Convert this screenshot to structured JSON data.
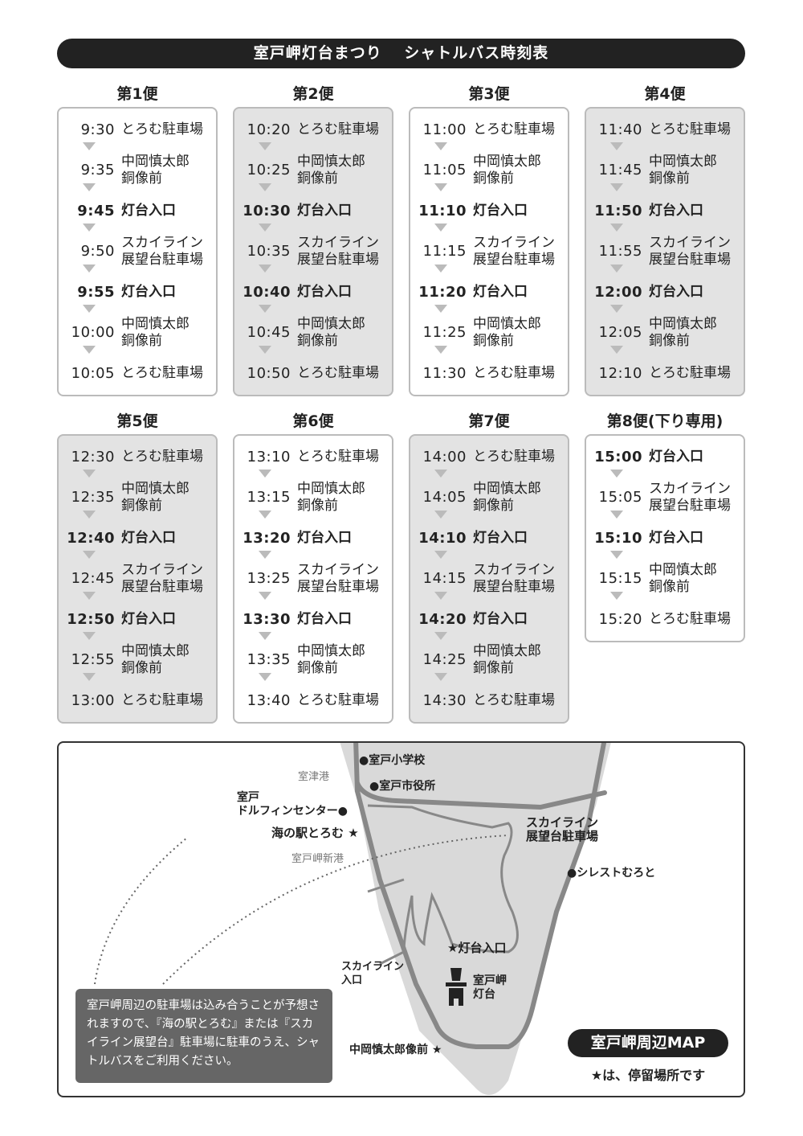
{
  "banner": {
    "title": "室戸岬灯台まつり　 シャトルバス時刻表"
  },
  "buses": [
    {
      "title": "第1便",
      "shaded": false,
      "stops": [
        {
          "time": "9:30",
          "name": "とろむ駐車場",
          "bold": false
        },
        {
          "time": "9:35",
          "name": "中岡慎太郎\n銅像前",
          "bold": false
        },
        {
          "time": "9:45",
          "name": "灯台入口",
          "bold": true
        },
        {
          "time": "9:50",
          "name": "スカイライン\n展望台駐車場",
          "bold": false
        },
        {
          "time": "9:55",
          "name": "灯台入口",
          "bold": true
        },
        {
          "time": "10:00",
          "name": "中岡慎太郎\n銅像前",
          "bold": false
        },
        {
          "time": "10:05",
          "name": "とろむ駐車場",
          "bold": false
        }
      ]
    },
    {
      "title": "第2便",
      "shaded": true,
      "stops": [
        {
          "time": "10:20",
          "name": "とろむ駐車場",
          "bold": false
        },
        {
          "time": "10:25",
          "name": "中岡慎太郎\n銅像前",
          "bold": false
        },
        {
          "time": "10:30",
          "name": "灯台入口",
          "bold": true
        },
        {
          "time": "10:35",
          "name": "スカイライン\n展望台駐車場",
          "bold": false
        },
        {
          "time": "10:40",
          "name": "灯台入口",
          "bold": true
        },
        {
          "time": "10:45",
          "name": "中岡慎太郎\n銅像前",
          "bold": false
        },
        {
          "time": "10:50",
          "name": "とろむ駐車場",
          "bold": false
        }
      ]
    },
    {
      "title": "第3便",
      "shaded": false,
      "stops": [
        {
          "time": "11:00",
          "name": "とろむ駐車場",
          "bold": false
        },
        {
          "time": "11:05",
          "name": "中岡慎太郎\n銅像前",
          "bold": false
        },
        {
          "time": "11:10",
          "name": "灯台入口",
          "bold": true
        },
        {
          "time": "11:15",
          "name": "スカイライン\n展望台駐車場",
          "bold": false
        },
        {
          "time": "11:20",
          "name": "灯台入口",
          "bold": true
        },
        {
          "time": "11:25",
          "name": "中岡慎太郎\n銅像前",
          "bold": false
        },
        {
          "time": "11:30",
          "name": "とろむ駐車場",
          "bold": false
        }
      ]
    },
    {
      "title": "第4便",
      "shaded": true,
      "stops": [
        {
          "time": "11:40",
          "name": "とろむ駐車場",
          "bold": false
        },
        {
          "time": "11:45",
          "name": "中岡慎太郎\n銅像前",
          "bold": false
        },
        {
          "time": "11:50",
          "name": "灯台入口",
          "bold": true
        },
        {
          "time": "11:55",
          "name": "スカイライン\n展望台駐車場",
          "bold": false
        },
        {
          "time": "12:00",
          "name": "灯台入口",
          "bold": true
        },
        {
          "time": "12:05",
          "name": "中岡慎太郎\n銅像前",
          "bold": false
        },
        {
          "time": "12:10",
          "name": "とろむ駐車場",
          "bold": false
        }
      ]
    },
    {
      "title": "第5便",
      "shaded": true,
      "stops": [
        {
          "time": "12:30",
          "name": "とろむ駐車場",
          "bold": false
        },
        {
          "time": "12:35",
          "name": "中岡慎太郎\n銅像前",
          "bold": false
        },
        {
          "time": "12:40",
          "name": "灯台入口",
          "bold": true
        },
        {
          "time": "12:45",
          "name": "スカイライン\n展望台駐車場",
          "bold": false
        },
        {
          "time": "12:50",
          "name": "灯台入口",
          "bold": true
        },
        {
          "time": "12:55",
          "name": "中岡慎太郎\n銅像前",
          "bold": false
        },
        {
          "time": "13:00",
          "name": "とろむ駐車場",
          "bold": false
        }
      ]
    },
    {
      "title": "第6便",
      "shaded": false,
      "stops": [
        {
          "time": "13:10",
          "name": "とろむ駐車場",
          "bold": false
        },
        {
          "time": "13:15",
          "name": "中岡慎太郎\n銅像前",
          "bold": false
        },
        {
          "time": "13:20",
          "name": "灯台入口",
          "bold": true
        },
        {
          "time": "13:25",
          "name": "スカイライン\n展望台駐車場",
          "bold": false
        },
        {
          "time": "13:30",
          "name": "灯台入口",
          "bold": true
        },
        {
          "time": "13:35",
          "name": "中岡慎太郎\n銅像前",
          "bold": false
        },
        {
          "time": "13:40",
          "name": "とろむ駐車場",
          "bold": false
        }
      ]
    },
    {
      "title": "第7便",
      "shaded": true,
      "stops": [
        {
          "time": "14:00",
          "name": "とろむ駐車場",
          "bold": false
        },
        {
          "time": "14:05",
          "name": "中岡慎太郎\n銅像前",
          "bold": false
        },
        {
          "time": "14:10",
          "name": "灯台入口",
          "bold": true
        },
        {
          "time": "14:15",
          "name": "スカイライン\n展望台駐車場",
          "bold": false
        },
        {
          "time": "14:20",
          "name": "灯台入口",
          "bold": true
        },
        {
          "time": "14:25",
          "name": "中岡慎太郎\n銅像前",
          "bold": false
        },
        {
          "time": "14:30",
          "name": "とろむ駐車場",
          "bold": false
        }
      ]
    },
    {
      "title": "第8便(下り専用)",
      "shaded": false,
      "stops": [
        {
          "time": "15:00",
          "name": "灯台入口",
          "bold": true
        },
        {
          "time": "15:05",
          "name": "スカイライン\n展望台駐車場",
          "bold": false
        },
        {
          "time": "15:10",
          "name": "灯台入口",
          "bold": true
        },
        {
          "time": "15:15",
          "name": "中岡慎太郎\n銅像前",
          "bold": false
        },
        {
          "time": "15:20",
          "name": "とろむ駐車場",
          "bold": false
        }
      ]
    }
  ],
  "map": {
    "labels": {
      "school": "●室戸小学校",
      "city_hall": "●室戸市役所",
      "murotsu_port": "室津港",
      "dolphin": "室戸\nドルフィンセンター●",
      "umi_no_eki": "海の駅とろむ ★",
      "new_port": "室戸岬新港",
      "skyline_parking": "スカイライン\n展望台駐車場",
      "silest": "●シレストむろと",
      "lighthouse_entrance": "★灯台入口",
      "skyline_entrance": "スカイライン\n入口",
      "lighthouse": "室戸岬\n灯台",
      "statue": "中岡慎太郎像前 ★"
    },
    "note": "室戸岬周辺の駐車場は込み合うことが予想されますので、『海の駅とろむ』または『スカイライン展望台』駐車場に駐車のうえ、シャトルバスをご利用ください。",
    "title": "室戸岬周辺MAP",
    "legend": "★は、停留場所です",
    "colors": {
      "land": "#d9d9d9",
      "road": "#888888",
      "note_bg": "#666666"
    }
  }
}
